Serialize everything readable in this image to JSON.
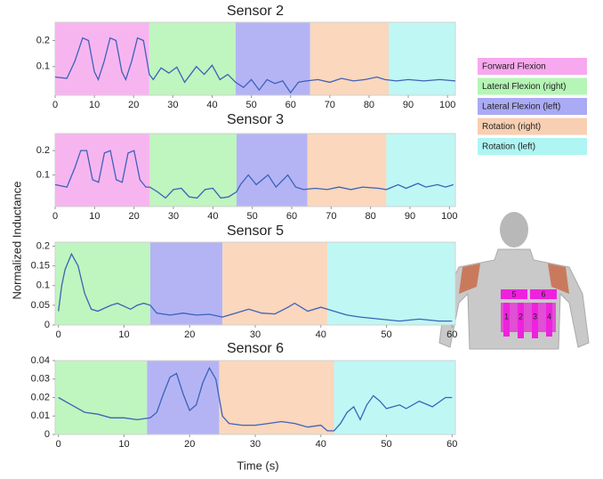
{
  "chart_data": [
    {
      "type": "line",
      "title": "Sensor 2",
      "xlim": [
        0,
        102
      ],
      "ylim": [
        -0.01,
        0.27
      ],
      "xticks": [
        0,
        10,
        20,
        30,
        40,
        50,
        60,
        70,
        80,
        90,
        100
      ],
      "yticks": [
        0.1,
        0.2
      ],
      "spans": [
        {
          "start": 0,
          "end": 24,
          "color": "#f7b5f0"
        },
        {
          "start": 24,
          "end": 46,
          "color": "#bff5bf"
        },
        {
          "start": 46,
          "end": 65,
          "color": "#b4b4f5"
        },
        {
          "start": 65,
          "end": 85,
          "color": "#fad7bd"
        },
        {
          "start": 85,
          "end": 102,
          "color": "#bff7f5"
        }
      ],
      "x": [
        0,
        3,
        5,
        7,
        8.5,
        10,
        11,
        12.5,
        14,
        15.5,
        17,
        18,
        19.5,
        21,
        22.5,
        24,
        25,
        27,
        29,
        31,
        33,
        36,
        38,
        40,
        42,
        44,
        46,
        48,
        50,
        52,
        54,
        56,
        58,
        60,
        62,
        64,
        67,
        70,
        73,
        76,
        79,
        82,
        84,
        87,
        90,
        94,
        98,
        102
      ],
      "series": [
        {
          "color": "#3d62b8",
          "values": [
            0.06,
            0.055,
            0.12,
            0.21,
            0.2,
            0.08,
            0.05,
            0.12,
            0.21,
            0.2,
            0.08,
            0.05,
            0.12,
            0.21,
            0.2,
            0.07,
            0.05,
            0.095,
            0.075,
            0.098,
            0.04,
            0.1,
            0.07,
            0.105,
            0.05,
            0.07,
            0.04,
            0.02,
            0.05,
            0.01,
            0.05,
            0.035,
            0.045,
            0.0,
            0.04,
            0.045,
            0.05,
            0.04,
            0.055,
            0.045,
            0.05,
            0.06,
            0.05,
            0.045,
            0.05,
            0.045,
            0.05,
            0.045
          ]
        }
      ]
    },
    {
      "type": "line",
      "title": "Sensor 3",
      "xlim": [
        0,
        101.5
      ],
      "ylim": [
        -0.03,
        0.27
      ],
      "xticks": [
        0,
        10,
        20,
        30,
        40,
        50,
        60,
        70,
        80,
        90,
        100
      ],
      "yticks": [
        0.1,
        0.2
      ],
      "spans": [
        {
          "start": 0,
          "end": 24,
          "color": "#f7b5f0"
        },
        {
          "start": 24,
          "end": 46,
          "color": "#bff5bf"
        },
        {
          "start": 46,
          "end": 64,
          "color": "#b4b4f5"
        },
        {
          "start": 64,
          "end": 84,
          "color": "#fad7bd"
        },
        {
          "start": 84,
          "end": 101.5,
          "color": "#bff7f5"
        }
      ],
      "x": [
        0,
        3,
        5,
        6.5,
        8,
        9.5,
        11,
        12.5,
        14,
        15.5,
        17,
        18.5,
        20,
        21.5,
        23,
        24,
        26,
        28,
        30,
        32,
        34,
        36,
        38,
        40,
        42,
        44,
        46,
        47,
        49,
        51,
        54,
        56,
        59,
        61,
        63,
        66,
        69,
        72,
        75,
        78,
        82,
        84,
        87,
        89,
        92,
        94,
        97,
        99,
        101
      ],
      "series": [
        {
          "color": "#3d62b8",
          "values": [
            0.06,
            0.05,
            0.13,
            0.2,
            0.2,
            0.08,
            0.07,
            0.19,
            0.2,
            0.08,
            0.07,
            0.19,
            0.2,
            0.08,
            0.05,
            0.05,
            0.03,
            0.005,
            0.04,
            0.045,
            0.01,
            0.005,
            0.04,
            0.045,
            0.005,
            0.01,
            0.03,
            0.06,
            0.1,
            0.06,
            0.1,
            0.05,
            0.1,
            0.05,
            0.04,
            0.045,
            0.04,
            0.05,
            0.04,
            0.05,
            0.045,
            0.04,
            0.06,
            0.045,
            0.065,
            0.05,
            0.06,
            0.05,
            0.06
          ]
        }
      ]
    },
    {
      "type": "line",
      "title": "Sensor 5",
      "xlim": [
        -0.5,
        60.5
      ],
      "ylim": [
        0,
        0.21
      ],
      "xticks": [
        0,
        10,
        20,
        30,
        40,
        50,
        60
      ],
      "yticks": [
        0,
        0.05,
        0.1,
        0.15,
        0.2
      ],
      "spans": [
        {
          "start": -0.5,
          "end": 14,
          "color": "#bff5bf"
        },
        {
          "start": 14,
          "end": 25,
          "color": "#b4b4f5"
        },
        {
          "start": 25,
          "end": 41,
          "color": "#fad7bd"
        },
        {
          "start": 41,
          "end": 60.5,
          "color": "#bff7f5"
        }
      ],
      "x": [
        0,
        0.5,
        1,
        2,
        3,
        4,
        5,
        6,
        8,
        9,
        11,
        12,
        13,
        14,
        15,
        17,
        19,
        21,
        23,
        25,
        27,
        29,
        31,
        33,
        35,
        36,
        38,
        40,
        42,
        44,
        46,
        49,
        52,
        55,
        58,
        60
      ],
      "series": [
        {
          "color": "#3d62b8",
          "values": [
            0.035,
            0.1,
            0.14,
            0.18,
            0.15,
            0.08,
            0.04,
            0.035,
            0.05,
            0.055,
            0.04,
            0.05,
            0.055,
            0.05,
            0.03,
            0.025,
            0.03,
            0.025,
            0.027,
            0.02,
            0.03,
            0.04,
            0.03,
            0.028,
            0.045,
            0.055,
            0.035,
            0.045,
            0.035,
            0.025,
            0.02,
            0.015,
            0.01,
            0.015,
            0.01,
            0.01
          ]
        }
      ]
    },
    {
      "type": "line",
      "title": "Sensor 6",
      "xlim": [
        -0.5,
        60.5
      ],
      "ylim": [
        0,
        0.04
      ],
      "xticks": [
        0,
        10,
        20,
        30,
        40,
        50,
        60
      ],
      "yticks": [
        0,
        0.01,
        0.02,
        0.03,
        0.04
      ],
      "spans": [
        {
          "start": -0.5,
          "end": 13.5,
          "color": "#bff5bf"
        },
        {
          "start": 13.5,
          "end": 24.5,
          "color": "#b4b4f5"
        },
        {
          "start": 24.5,
          "end": 42,
          "color": "#fad7bd"
        },
        {
          "start": 42,
          "end": 60.5,
          "color": "#bff7f5"
        }
      ],
      "x": [
        0,
        2,
        4,
        6,
        8,
        10,
        12,
        14,
        15,
        16,
        17,
        18,
        19,
        20,
        21,
        22,
        23,
        24,
        25,
        26,
        28,
        30,
        32,
        34,
        36,
        38,
        40,
        41,
        42,
        43,
        44,
        45,
        46,
        47,
        48,
        49,
        50,
        52,
        53,
        55,
        57,
        59,
        60
      ],
      "series": [
        {
          "color": "#3d62b8",
          "values": [
            0.02,
            0.016,
            0.012,
            0.011,
            0.009,
            0.009,
            0.008,
            0.009,
            0.012,
            0.022,
            0.031,
            0.033,
            0.022,
            0.013,
            0.016,
            0.028,
            0.036,
            0.03,
            0.01,
            0.006,
            0.005,
            0.005,
            0.006,
            0.007,
            0.006,
            0.004,
            0.005,
            0.002,
            0.002,
            0.006,
            0.012,
            0.015,
            0.008,
            0.016,
            0.021,
            0.018,
            0.014,
            0.016,
            0.014,
            0.018,
            0.015,
            0.02,
            0.02
          ]
        }
      ]
    }
  ],
  "shared": {
    "xlabel": "Time (s)",
    "ylabel": "Normalized Inductance"
  },
  "legend": {
    "items": [
      {
        "name": "Forward Flexion",
        "color": "#f7a8ee"
      },
      {
        "name": "Lateral Flexion (right)",
        "color": "#b5f5b5"
      },
      {
        "name": "Lateral Flexion (left)",
        "color": "#aaaaf5"
      },
      {
        "name": "Rotation (right)",
        "color": "#f8cfb2"
      },
      {
        "name": "Rotation (left)",
        "color": "#aef5f3"
      }
    ]
  },
  "figure": {
    "pad_labels": [
      "5",
      "6",
      "1",
      "2",
      "3",
      "4"
    ]
  }
}
